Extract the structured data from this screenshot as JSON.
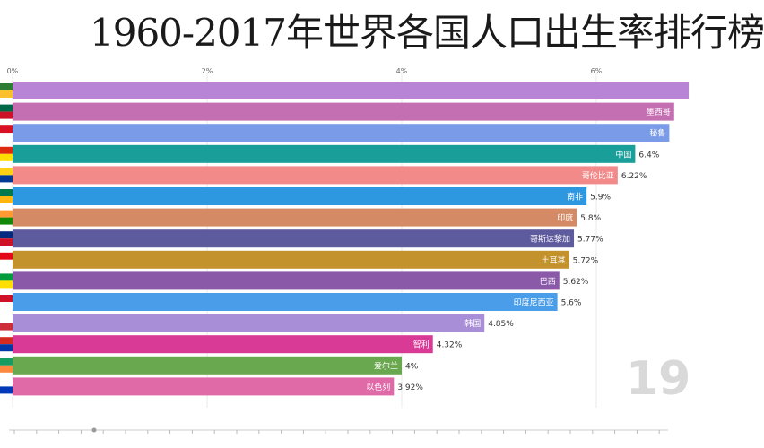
{
  "title": "1960-2017年世界各国人口出生率排行榜",
  "chart_data": {
    "type": "bar",
    "orientation": "horizontal",
    "title": "1960-2017年世界各国人口出生率排行榜",
    "xlim": [
      0,
      6.8
    ],
    "x_ticks": [
      "0%",
      "2%",
      "4%",
      "6%"
    ],
    "x_tick_values": [
      0,
      2,
      4,
      6
    ],
    "year_watermark": "19",
    "grid": true,
    "bars": [
      {
        "label": "",
        "value": 6.95,
        "value_label": "",
        "color": "#b784d6"
      },
      {
        "label": "墨西哥",
        "value": 6.8,
        "value_label": "",
        "color": "#c56fb3"
      },
      {
        "label": "秘鲁",
        "value": 6.75,
        "value_label": "",
        "color": "#7a9be8"
      },
      {
        "label": "中国",
        "value": 6.4,
        "value_label": "6.4%",
        "color": "#1a9e9a"
      },
      {
        "label": "哥伦比亚",
        "value": 6.22,
        "value_label": "6.22%",
        "color": "#f28a8a"
      },
      {
        "label": "南非",
        "value": 5.9,
        "value_label": "5.9%",
        "color": "#2d97e0"
      },
      {
        "label": "印度",
        "value": 5.8,
        "value_label": "5.8%",
        "color": "#d48a64"
      },
      {
        "label": "哥斯达黎加",
        "value": 5.77,
        "value_label": "5.77%",
        "color": "#5e5a9e"
      },
      {
        "label": "土耳其",
        "value": 5.72,
        "value_label": "5.72%",
        "color": "#c4922d"
      },
      {
        "label": "巴西",
        "value": 5.62,
        "value_label": "5.62%",
        "color": "#8a5aa8"
      },
      {
        "label": "印度尼西亚",
        "value": 5.6,
        "value_label": "5.6%",
        "color": "#4a9de8"
      },
      {
        "label": "韩国",
        "value": 4.85,
        "value_label": "4.85%",
        "color": "#a88ed6"
      },
      {
        "label": "智利",
        "value": 4.32,
        "value_label": "4.32%",
        "color": "#d83a96"
      },
      {
        "label": "爱尔兰",
        "value": 4.0,
        "value_label": "4%",
        "color": "#6aa84f"
      },
      {
        "label": "以色列",
        "value": 3.92,
        "value_label": "3.92%",
        "color": "#e06aa8"
      }
    ],
    "flag_colors": [
      [
        "#2e7d32",
        "#fbc02d"
      ],
      [
        "#006847",
        "#ce1126"
      ],
      [
        "#d91023",
        "#ffffff"
      ],
      [
        "#de2910",
        "#ffde00"
      ],
      [
        "#fcd116",
        "#003893"
      ],
      [
        "#007a4d",
        "#ffb612"
      ],
      [
        "#ff9933",
        "#138808"
      ],
      [
        "#002b7f",
        "#ce1126"
      ],
      [
        "#e30a17",
        "#ffffff"
      ],
      [
        "#009c3b",
        "#ffdf00"
      ],
      [
        "#ce1126",
        "#ffffff"
      ],
      [
        "#ffffff",
        "#cd2e3a"
      ],
      [
        "#d52b1e",
        "#0039a6"
      ],
      [
        "#169b62",
        "#ff883e"
      ],
      [
        "#ffffff",
        "#0038b8"
      ]
    ]
  }
}
